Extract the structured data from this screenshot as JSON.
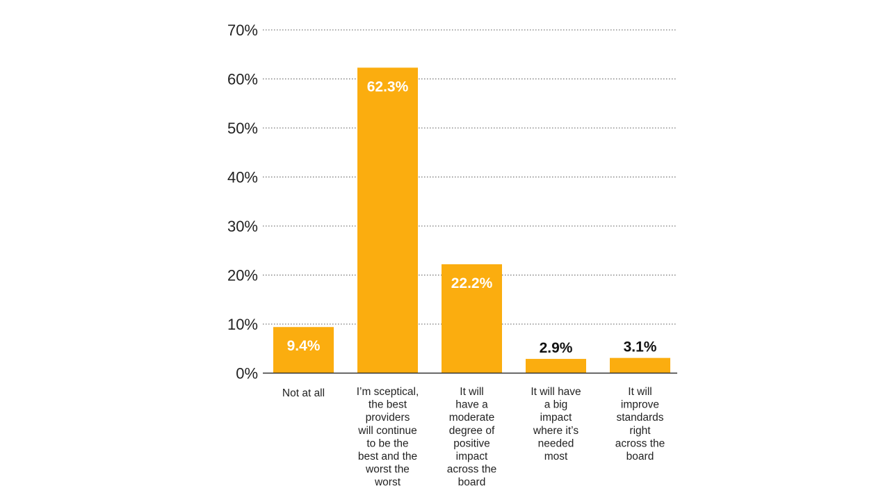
{
  "chart_data": {
    "type": "bar",
    "title": "",
    "xlabel": "",
    "ylabel": "",
    "ylim": [
      0,
      70
    ],
    "yticks": [
      0,
      10,
      20,
      30,
      40,
      50,
      60,
      70
    ],
    "ytick_labels": [
      "0%",
      "10%",
      "20%",
      "30%",
      "40%",
      "50%",
      "60%",
      "70%"
    ],
    "grid": true,
    "bar_color": "#fbad0f",
    "label_color_inside": "#ffffff",
    "label_color_outside": "#111111",
    "categories": [
      [
        "Not at all"
      ],
      [
        "I’m sceptical,",
        "the best",
        "providers",
        "will continue",
        "to be the",
        "best and the",
        "worst the",
        "worst"
      ],
      [
        "It will",
        "have a",
        "moderate",
        "degree of",
        "positive",
        "impact",
        "across the",
        "board"
      ],
      [
        "It will have",
        "a big",
        "impact",
        "where it’s",
        "needed",
        "most"
      ],
      [
        "It will",
        "improve",
        "standards",
        "right",
        "across the",
        "board"
      ]
    ],
    "values": [
      9.4,
      62.3,
      22.2,
      2.9,
      3.1
    ],
    "value_labels": [
      "9.4%",
      "62.3%",
      "22.2%",
      "2.9%",
      "3.1%"
    ]
  }
}
